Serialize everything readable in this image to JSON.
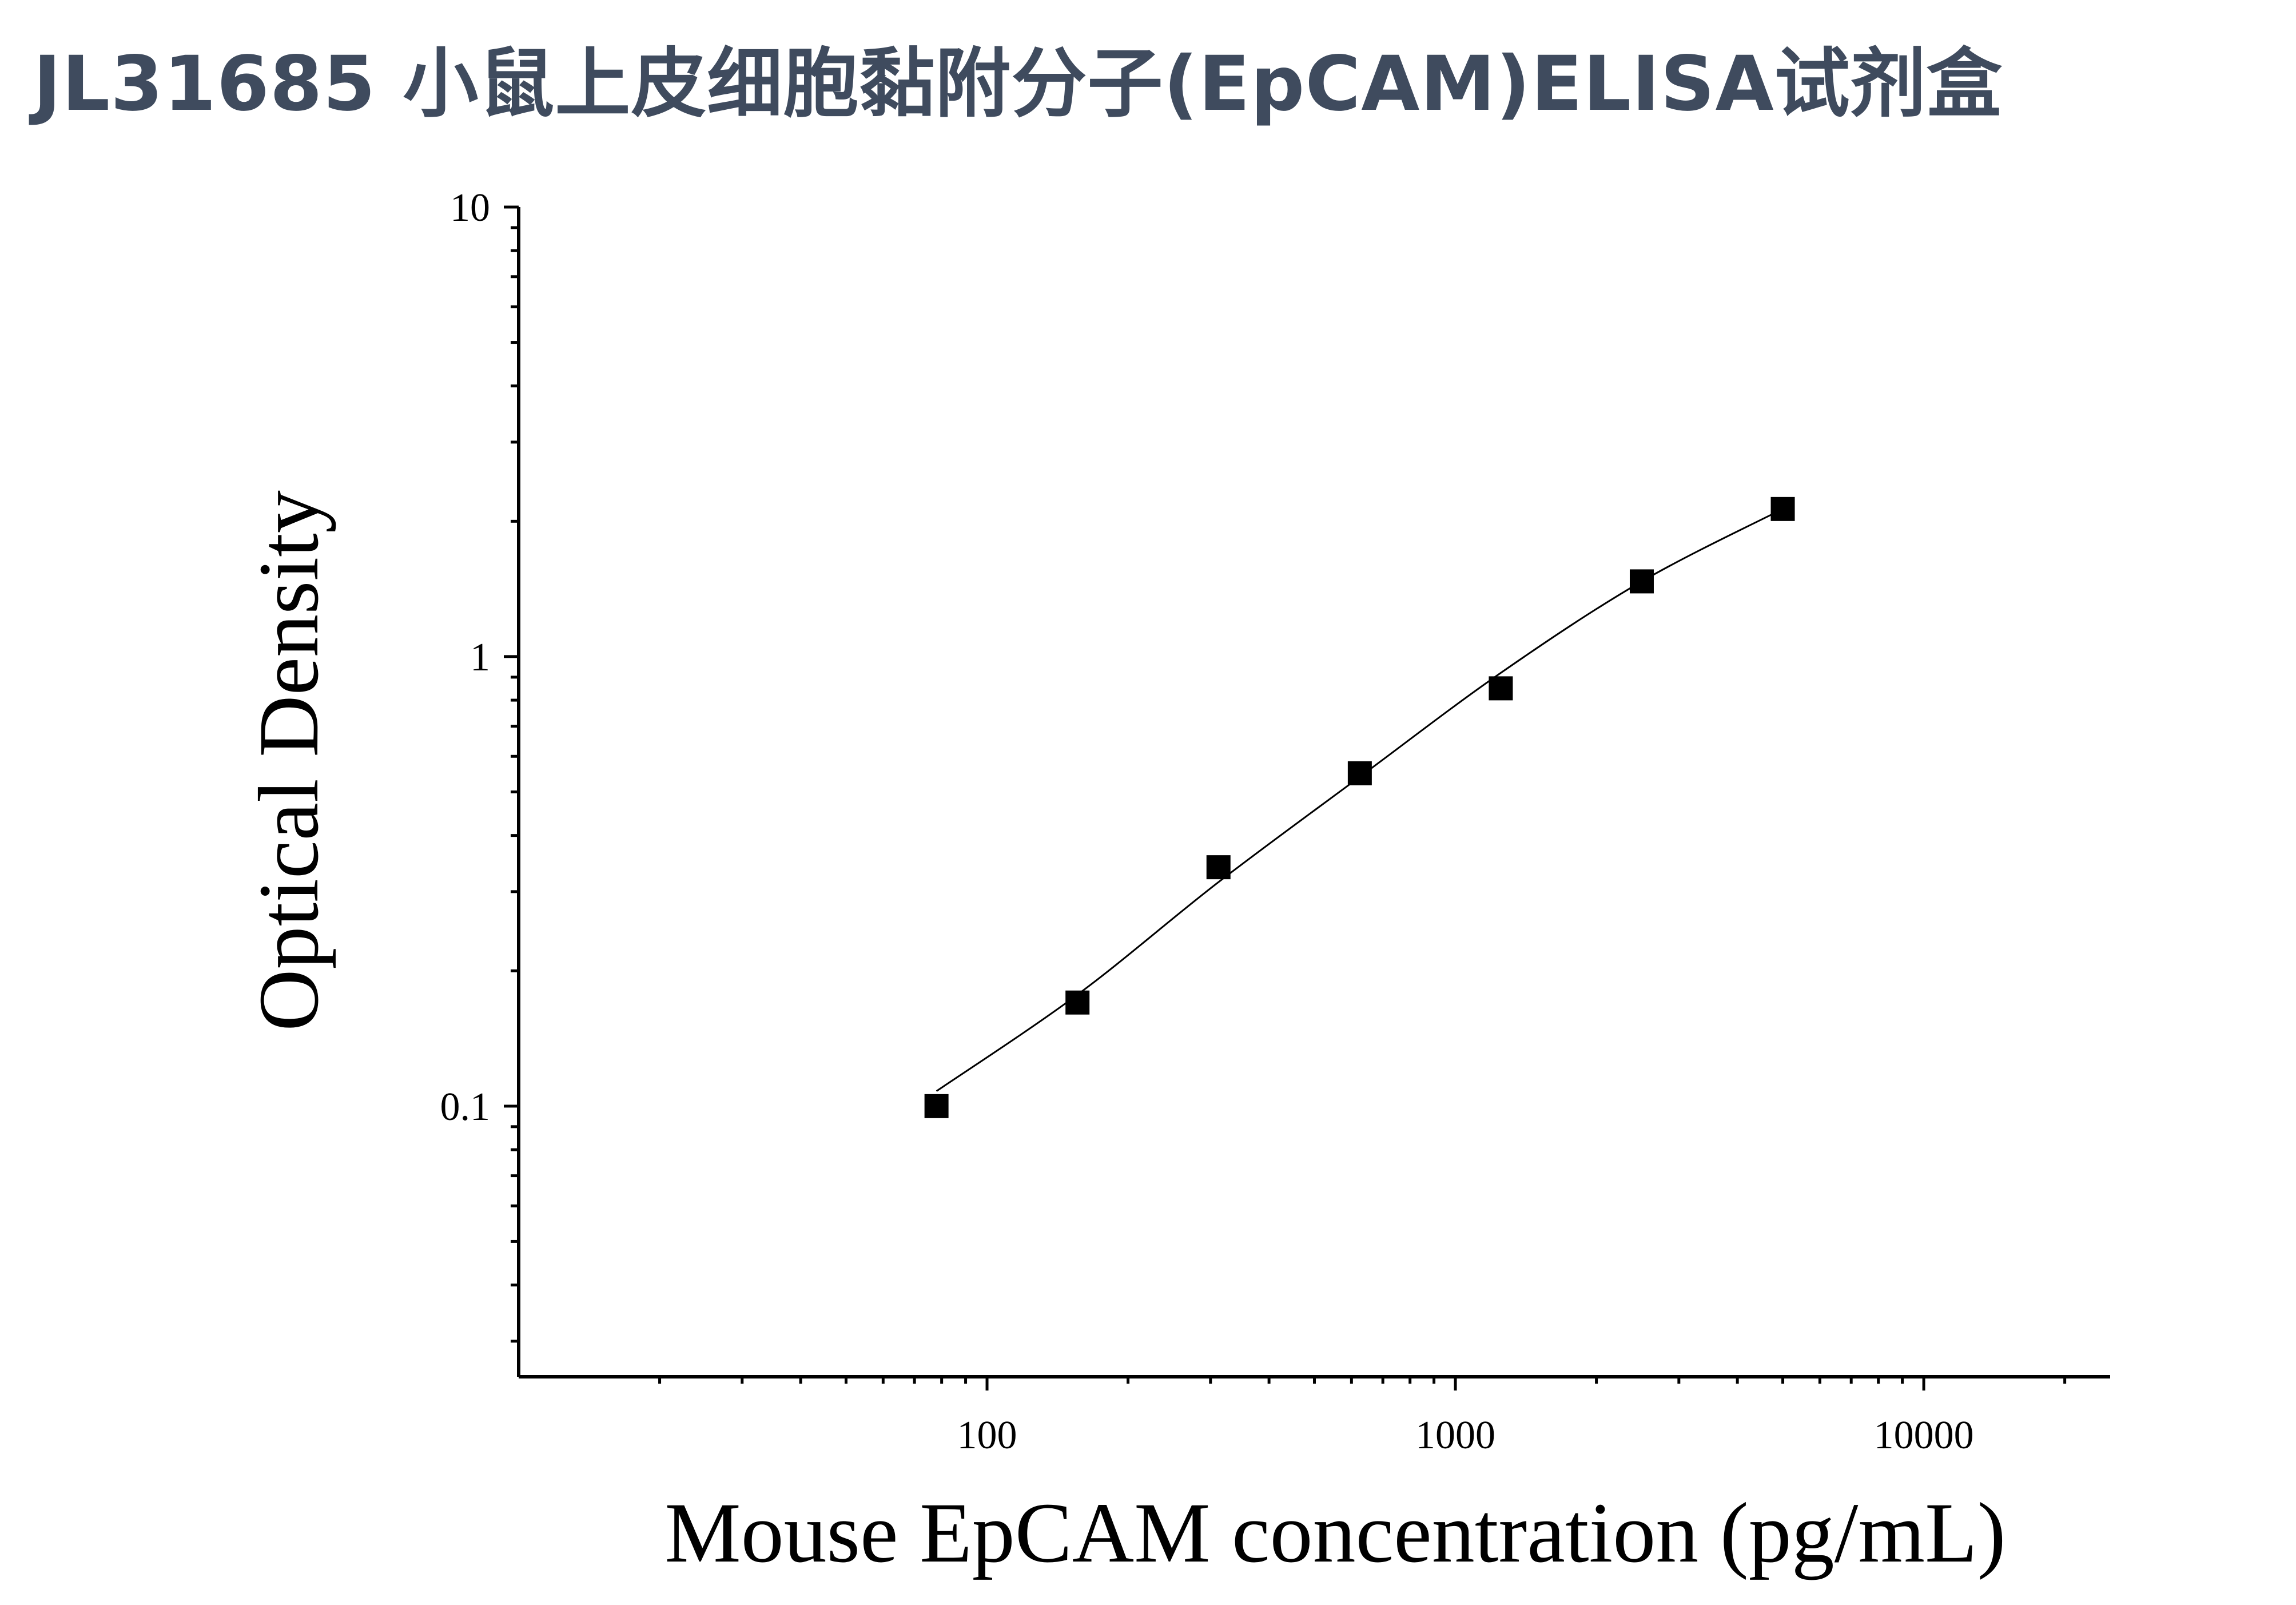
{
  "title": "JL31685 小鼠上皮细胞黏附分子(EpCAM)ELISA试剂盒",
  "chart_data": {
    "type": "scatter",
    "xlabel": "Mouse EpCAM concentration (pg/mL)",
    "ylabel": "Optical Density",
    "xscale": "log",
    "yscale": "log",
    "xlim": [
      10,
      25000
    ],
    "ylim": [
      0.025,
      10
    ],
    "x_ticks": [
      100,
      1000,
      10000
    ],
    "x_tick_labels": [
      "100",
      "1000",
      "10000"
    ],
    "y_ticks": [
      0.1,
      1,
      10
    ],
    "y_tick_labels": [
      "0.1",
      "1",
      "10"
    ],
    "grid": false,
    "marker": "square",
    "marker_color": "#000000",
    "line_color": "#000000",
    "series": [
      {
        "x": [
          78,
          156,
          312,
          625,
          1250,
          2500,
          5000
        ],
        "y": [
          0.1,
          0.17,
          0.34,
          0.55,
          0.85,
          1.47,
          2.13
        ]
      }
    ],
    "fit_curve": {
      "x": [
        78,
        156,
        312,
        625,
        1250,
        2500,
        5000
      ],
      "y": [
        0.108,
        0.177,
        0.315,
        0.54,
        0.92,
        1.47,
        2.13
      ]
    }
  }
}
